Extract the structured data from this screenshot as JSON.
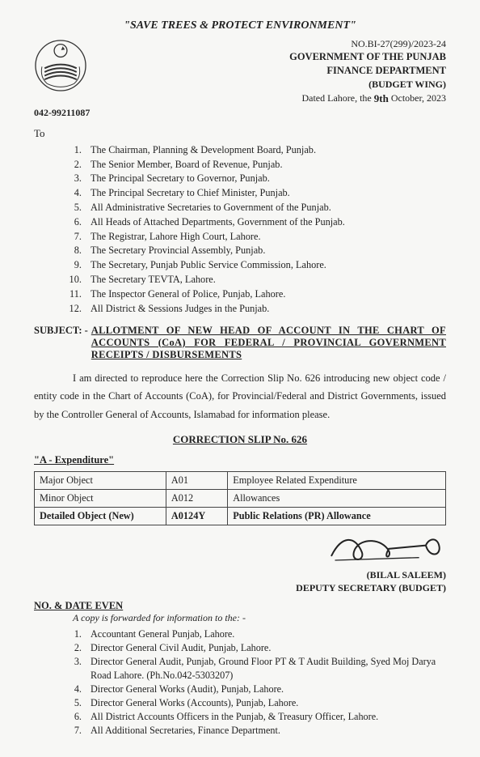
{
  "slogan": "\"SAVE TREES & PROTECT ENVIRONMENT\"",
  "header": {
    "ref_no": "NO.BI-27(299)/2023-24",
    "gov": "GOVERNMENT OF THE PUNJAB",
    "dept": "FINANCE DEPARTMENT",
    "wing": "(BUDGET WING)",
    "dated_prefix": "Dated Lahore, the ",
    "dated_hand": "9th",
    "dated_suffix": " October, 2023"
  },
  "phone": "042-99211087",
  "to_label": "To",
  "recipients": [
    "The Chairman, Planning & Development Board, Punjab.",
    "The Senior Member, Board of Revenue, Punjab.",
    "The Principal Secretary to Governor, Punjab.",
    "The Principal Secretary to Chief Minister, Punjab.",
    "All Administrative Secretaries to Government of the Punjab.",
    "All Heads of Attached Departments, Government of the Punjab.",
    "The Registrar, Lahore High Court, Lahore.",
    "The Secretary Provincial Assembly, Punjab.",
    "The Secretary, Punjab Public Service Commission, Lahore.",
    "The Secretary TEVTA, Lahore.",
    "The Inspector General of Police, Punjab, Lahore.",
    "All District & Sessions Judges in the Punjab."
  ],
  "subject_label": "SUBJECT: - ",
  "subject_text": "ALLOTMENT OF NEW HEAD OF ACCOUNT IN THE CHART OF ACCOUNTS (CoA) FOR FEDERAL / PROVINCIAL GOVERNMENT RECEIPTS / DISBURSEMENTS",
  "body_para": "I am directed to reproduce here the Correction Slip No. 626 introducing new object code / entity code in the Chart of Accounts (CoA), for Provincial/Federal and District Governments, issued by the Controller General of Accounts, Islamabad for information please.",
  "slip_title": "CORRECTION SLIP No. 626",
  "expenditure_label": "\"A - Expenditure\"",
  "table": {
    "rows": [
      [
        "Major Object",
        "A01",
        "Employee Related Expenditure"
      ],
      [
        "Minor Object",
        "A012",
        "Allowances"
      ],
      [
        "Detailed Object (New)",
        "A0124Y",
        "Public Relations (PR) Allowance"
      ]
    ],
    "col_widths": [
      "32%",
      "15%",
      "53%"
    ]
  },
  "signature": {
    "name": "(BILAL SALEEM)",
    "title": "DEPUTY SECRETARY (BUDGET)"
  },
  "nd_even": "NO. & DATE EVEN",
  "copy_fwd": "A copy is forwarded for information to the: -",
  "cc": [
    "Accountant General Punjab, Lahore.",
    "Director General Civil Audit, Punjab, Lahore.",
    "Director General Audit, Punjab, Ground Floor PT & T Audit Building, Syed Moj Darya Road Lahore. (Ph.No.042-5303207)",
    "Director General Works (Audit), Punjab, Lahore.",
    "Director General Works (Accounts), Punjab, Lahore.",
    "All District Accounts Officers in the Punjab, & Treasury Officer, Lahore.",
    "All Additional Secretaries, Finance Department."
  ],
  "colors": {
    "bg": "#f7f7f5",
    "text": "#222",
    "border": "#444"
  }
}
